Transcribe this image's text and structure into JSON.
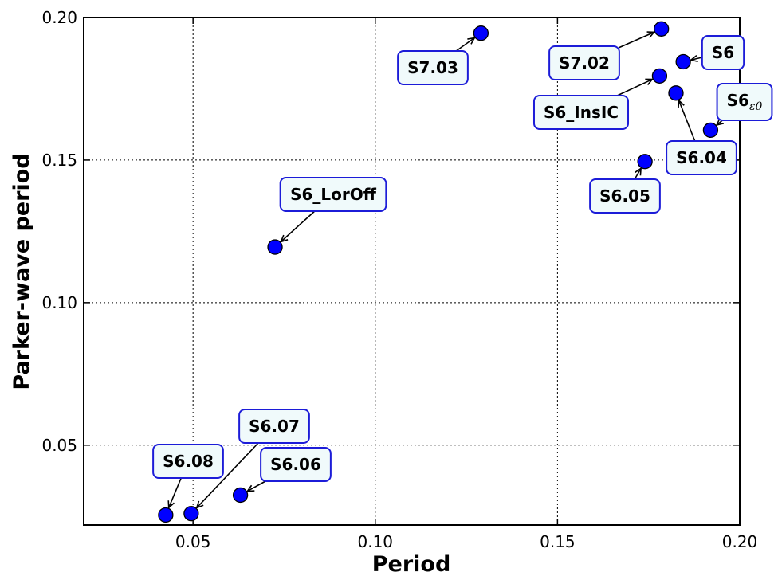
{
  "chart_data": {
    "type": "scatter",
    "title": "",
    "xlabel": "Period",
    "ylabel": "Parker-wave period",
    "xlim": [
      0.02,
      0.2
    ],
    "ylim": [
      0.022,
      0.2
    ],
    "xticks": [
      0.05,
      0.1,
      0.15,
      0.2
    ],
    "xtick_labels": [
      "0.05",
      "0.10",
      "0.15",
      "0.20"
    ],
    "yticks": [
      0.05,
      0.1,
      0.15,
      0.2
    ],
    "ytick_labels": [
      "0.05",
      "0.10",
      "0.15",
      "0.20"
    ],
    "grid": true,
    "marker_color": "#0000ff",
    "box_edge_color": "#1c1cd8",
    "box_fill_color": "#f0fafb",
    "points": [
      {
        "label": "S7.03",
        "x": 0.129,
        "y": 0.1945
      },
      {
        "label": "S7.02",
        "x": 0.1785,
        "y": 0.196
      },
      {
        "label": "S6",
        "x": 0.1845,
        "y": 0.1845
      },
      {
        "label": "S6_InsIC",
        "x": 0.178,
        "y": 0.1795
      },
      {
        "label": "S6.04",
        "x": 0.1825,
        "y": 0.1735
      },
      {
        "label": "S6",
        "label_subscript": "ε0",
        "x": 0.192,
        "y": 0.1605
      },
      {
        "label": "S6.05",
        "x": 0.174,
        "y": 0.1495
      },
      {
        "label": "S6_LorOff",
        "x": 0.0725,
        "y": 0.1195
      },
      {
        "label": "S6.07",
        "x": 0.0495,
        "y": 0.026
      },
      {
        "label": "S6.08",
        "x": 0.0425,
        "y": 0.0255
      },
      {
        "label": "S6.06",
        "x": 0.063,
        "y": 0.0325
      }
    ]
  }
}
